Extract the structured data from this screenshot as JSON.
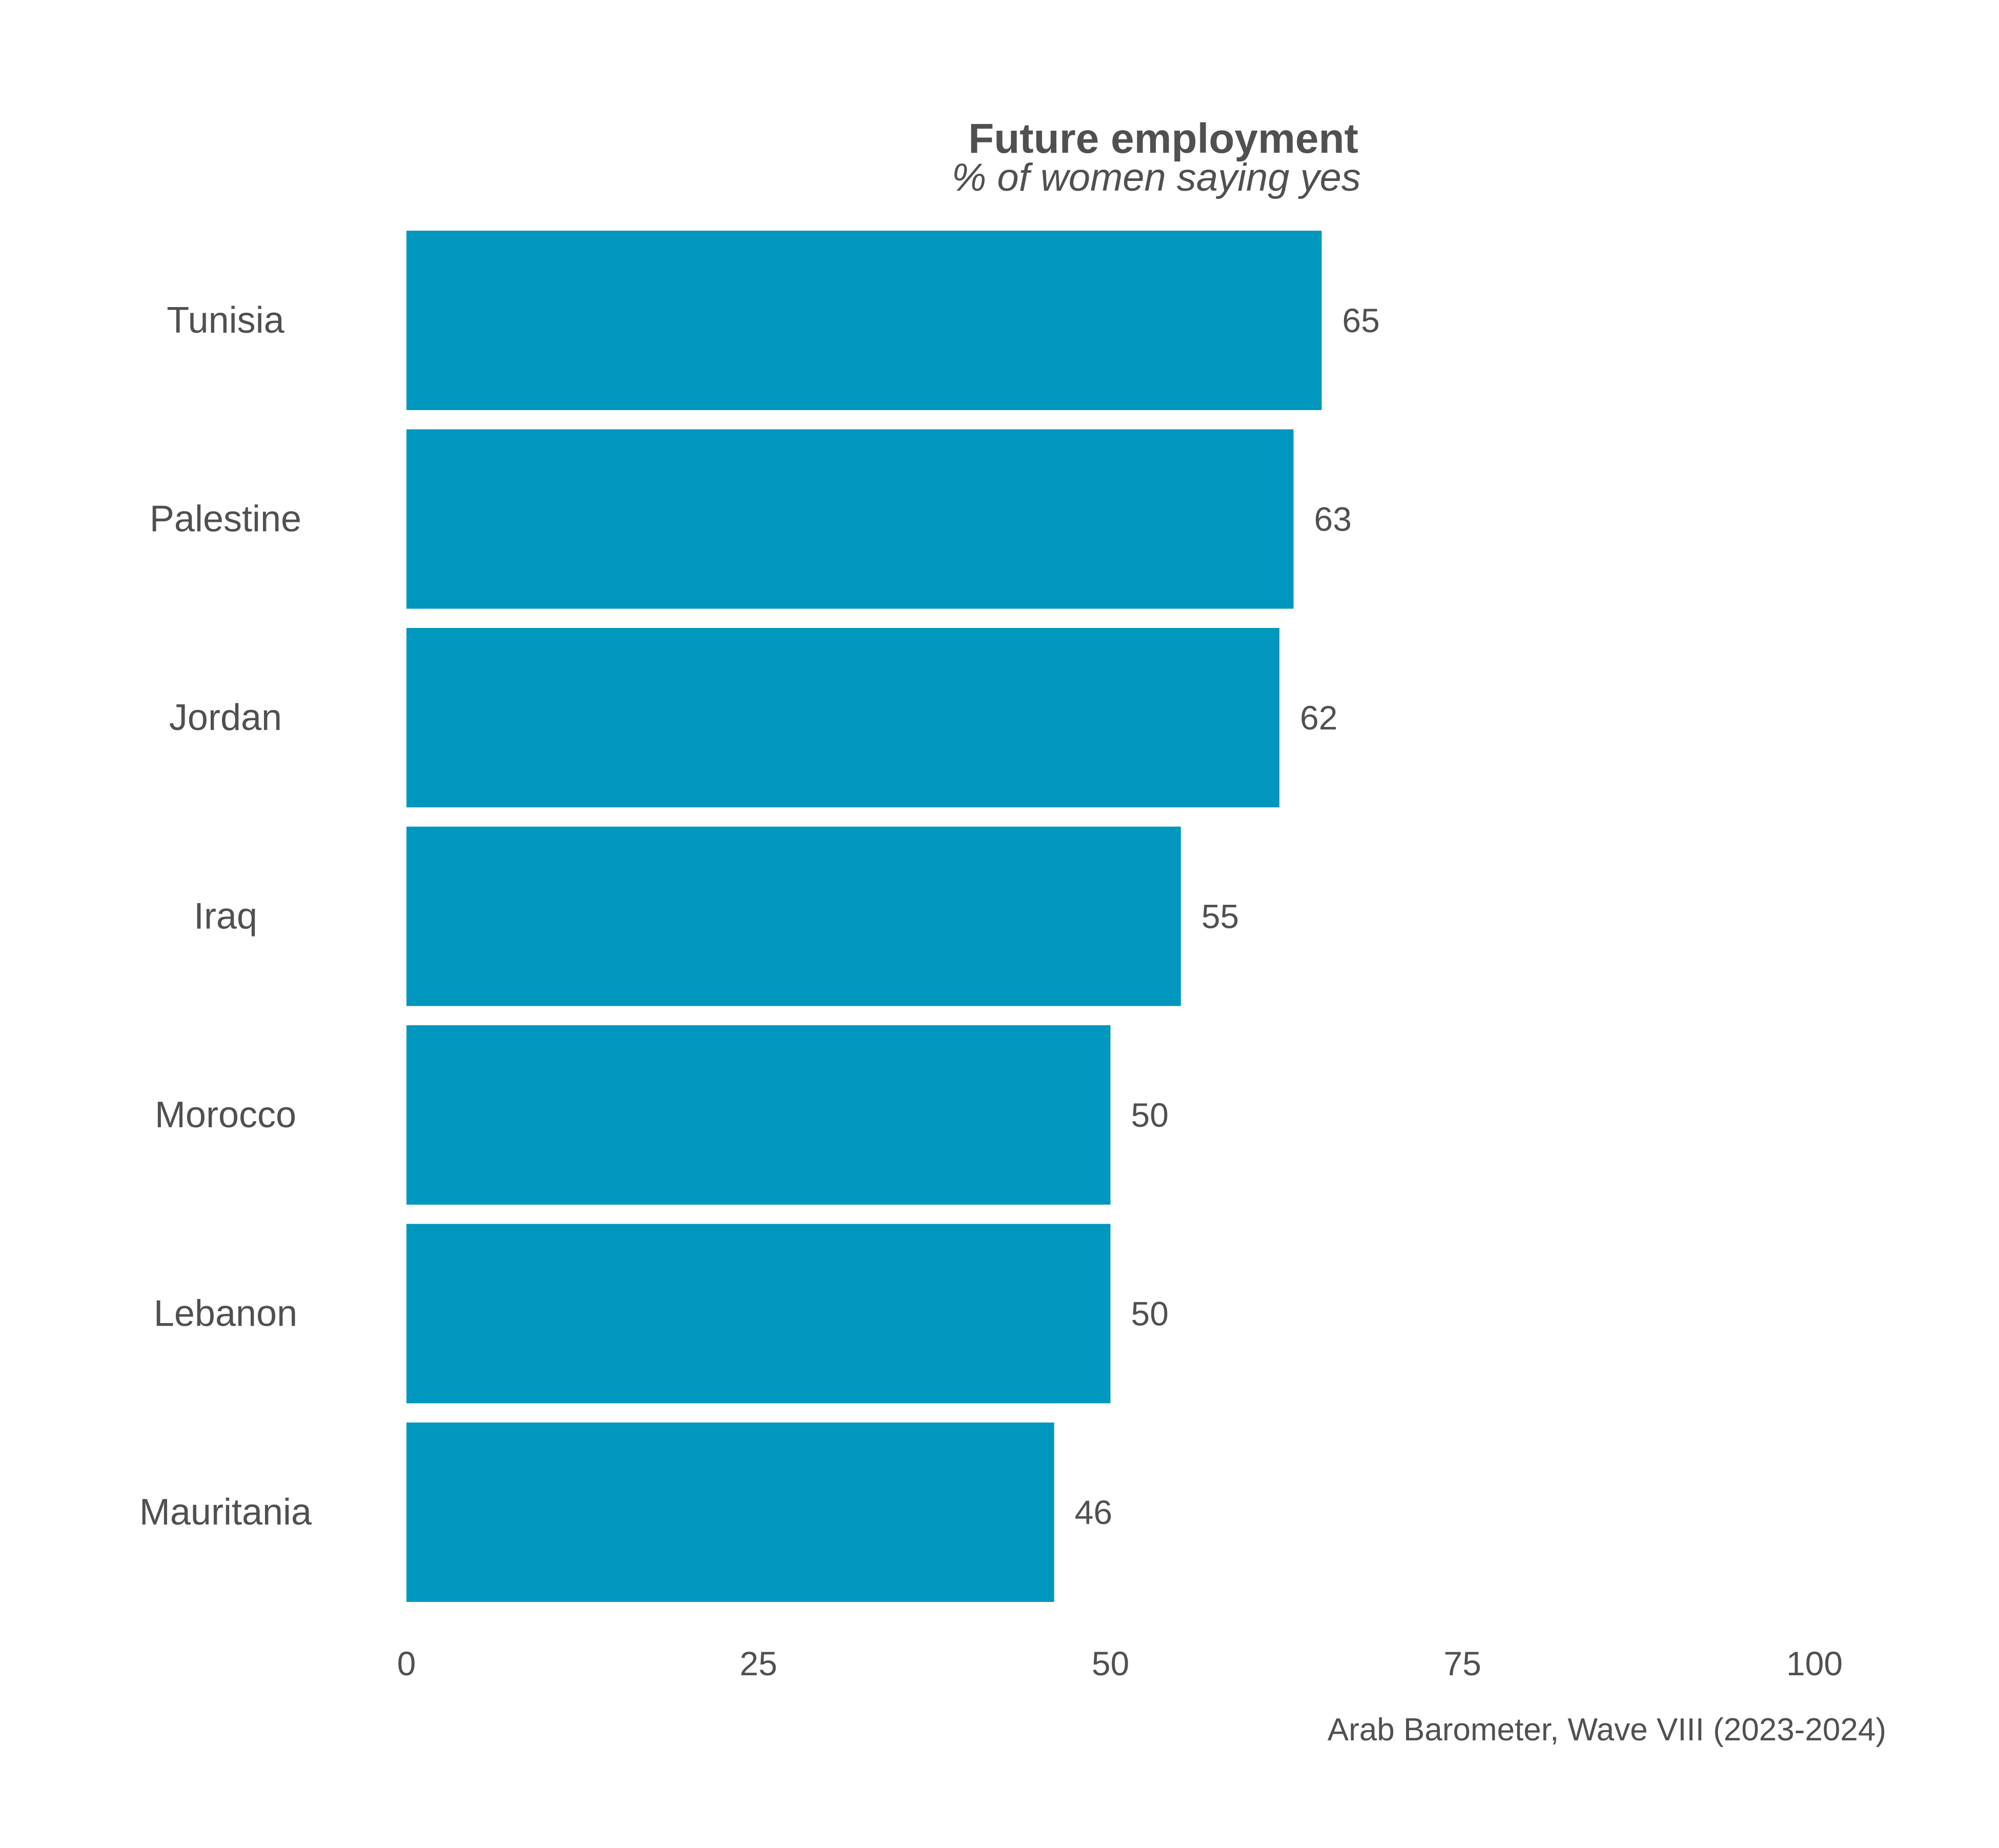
{
  "chart_data": {
    "type": "bar",
    "orientation": "horizontal",
    "title": "Future employment",
    "subtitle": "% of women saying yes",
    "categories": [
      "Tunisia",
      "Palestine",
      "Jordan",
      "Iraq",
      "Morocco",
      "Lebanon",
      "Mauritania"
    ],
    "values": [
      65,
      63,
      62,
      55,
      50,
      50,
      46
    ],
    "value_labels": [
      "65",
      "63",
      "62",
      "55",
      "50",
      "50",
      "46"
    ],
    "xlim": [
      0,
      100
    ],
    "x_ticks": [
      0,
      25,
      50,
      75,
      100
    ],
    "x_tick_labels": [
      "0",
      "25",
      "50",
      "75",
      "100"
    ],
    "bar_color": "#0097BF",
    "grid": false,
    "legend": "none",
    "source": "Arab Barometer, Wave VIII (2023-2024)"
  }
}
